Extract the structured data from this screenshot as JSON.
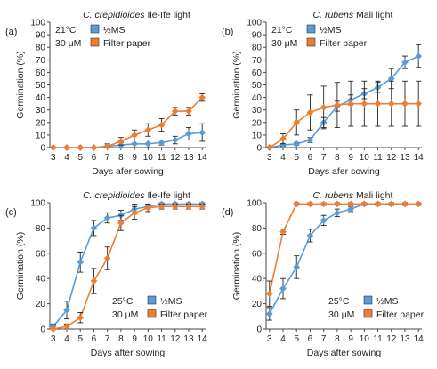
{
  "colors": {
    "ms": "#5B9BD5",
    "filter": "#ED7D31",
    "axis": "#444444",
    "error": "#222222"
  },
  "chart_data": [
    {
      "panel": "(a)",
      "type": "line",
      "title_italic": "C. crepidioides",
      "title_rest": " Ile-Ife light",
      "xlabel": "Days afer sowing",
      "ylabel": "Germination (%)",
      "temperature": "21°C",
      "concentration": "30 μM",
      "legend_position": "top-left",
      "x": [
        3,
        4,
        5,
        6,
        7,
        8,
        9,
        10,
        11,
        12,
        13,
        14
      ],
      "ylim": [
        0,
        100
      ],
      "yticks": [
        0,
        10,
        20,
        30,
        40,
        50,
        60,
        70,
        80,
        90,
        100
      ],
      "series": [
        {
          "name": "½MS",
          "key": "ms",
          "values": [
            0,
            0,
            0,
            0,
            1,
            2,
            3,
            3,
            4,
            6,
            11,
            12
          ],
          "errors": [
            0,
            0,
            0,
            0,
            1,
            2,
            3,
            3,
            2,
            3,
            5,
            7
          ]
        },
        {
          "name": "Filter paper",
          "key": "filter",
          "values": [
            0,
            0,
            0,
            0,
            1,
            5,
            10,
            14,
            18,
            29,
            29,
            40
          ],
          "errors": [
            0,
            0,
            0,
            0,
            2,
            3,
            4,
            5,
            5,
            3,
            3,
            3
          ]
        }
      ]
    },
    {
      "panel": "(b)",
      "type": "line",
      "title_italic": "C. rubens",
      "title_rest": " Mali light",
      "xlabel": "Days afer sowing",
      "ylabel": "Germination (%)",
      "temperature": "21°C",
      "concentration": "30 μM",
      "legend_position": "top-left",
      "x": [
        3,
        4,
        5,
        6,
        7,
        8,
        9,
        10,
        11,
        12,
        13,
        14
      ],
      "ylim": [
        0,
        100
      ],
      "yticks": [
        0,
        10,
        20,
        30,
        40,
        50,
        60,
        70,
        80,
        90,
        100
      ],
      "series": [
        {
          "name": "½MS",
          "key": "ms",
          "values": [
            0,
            2,
            3,
            6,
            20,
            33,
            38,
            43,
            48,
            55,
            68,
            73
          ],
          "errors": [
            0,
            1,
            1,
            2,
            4,
            4,
            4,
            4,
            4,
            8,
            5,
            9
          ]
        },
        {
          "name": "Filter paper",
          "key": "filter",
          "values": [
            0,
            7,
            20,
            28,
            32,
            34,
            35,
            35,
            35,
            35,
            35,
            35
          ],
          "errors": [
            0,
            4,
            10,
            14,
            17,
            18,
            18,
            18,
            18,
            18,
            18,
            18
          ]
        }
      ]
    },
    {
      "panel": "(c)",
      "type": "line",
      "title_italic": "C. crepidioides",
      "title_rest": " Ile-Ife light",
      "xlabel": "Days after sowing",
      "ylabel": "Germination (%)",
      "temperature": "25°C",
      "concentration": "30 μM",
      "legend_position": "bottom-right",
      "x": [
        3,
        4,
        5,
        6,
        7,
        8,
        9,
        10,
        11,
        12,
        13,
        14
      ],
      "ylim": [
        0,
        100
      ],
      "yticks": [
        0,
        20,
        40,
        60,
        80,
        100
      ],
      "series": [
        {
          "name": "½MS",
          "key": "ms",
          "values": [
            2,
            15,
            53,
            80,
            88,
            90,
            95,
            97,
            99,
            99,
            99,
            99
          ],
          "errors": [
            2,
            7,
            8,
            6,
            4,
            4,
            4,
            2,
            1,
            1,
            1,
            1
          ]
        },
        {
          "name": "Filter paper",
          "key": "filter",
          "values": [
            0,
            2,
            9,
            38,
            56,
            84,
            92,
            96,
            97,
            97,
            97,
            97
          ],
          "errors": [
            0,
            2,
            4,
            10,
            9,
            6,
            5,
            3,
            2,
            2,
            2,
            2
          ]
        }
      ]
    },
    {
      "panel": "(d)",
      "type": "line",
      "title_italic": "C. rubens",
      "title_rest": " Mali light",
      "xlabel": "Days after sowing",
      "ylabel": "Germination (%)",
      "temperature": "25°C",
      "concentration": "30 μM",
      "legend_position": "bottom-right",
      "x": [
        3,
        4,
        5,
        6,
        7,
        8,
        9,
        10,
        11,
        12,
        13,
        14
      ],
      "ylim": [
        0,
        100
      ],
      "yticks": [
        0,
        20,
        40,
        60,
        80,
        100
      ],
      "series": [
        {
          "name": "½MS",
          "key": "ms",
          "values": [
            12,
            32,
            49,
            74,
            86,
            92,
            95,
            99,
            99,
            99,
            99,
            99
          ],
          "errors": [
            5,
            8,
            9,
            5,
            4,
            3,
            2,
            1,
            1,
            1,
            1,
            1
          ]
        },
        {
          "name": "Filter paper",
          "key": "filter",
          "values": [
            28,
            77,
            99,
            99,
            99,
            99,
            99,
            99,
            99,
            99,
            99,
            99
          ],
          "errors": [
            10,
            2,
            1,
            1,
            1,
            1,
            1,
            1,
            1,
            1,
            1,
            1
          ]
        }
      ]
    }
  ]
}
